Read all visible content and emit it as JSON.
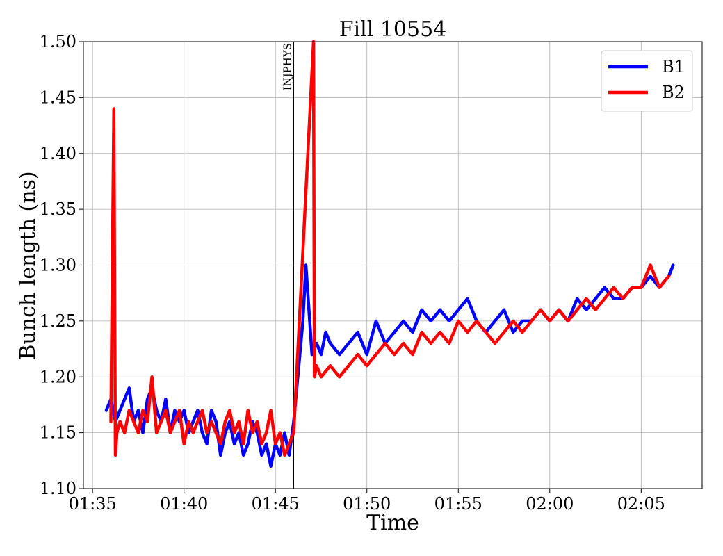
{
  "chart_data": {
    "type": "line",
    "title": "Fill 10554",
    "xlabel": "Time",
    "ylabel": "Bunch length (ns)",
    "x_unit": "time (hh:mm)",
    "xlim": [
      "01:34:30",
      "02:08:20"
    ],
    "ylim": [
      1.1,
      1.5
    ],
    "x_ticks": [
      "01:35",
      "01:40",
      "01:45",
      "01:50",
      "01:55",
      "02:00",
      "02:05"
    ],
    "y_ticks": [
      "1.10",
      "1.15",
      "1.20",
      "1.25",
      "1.30",
      "1.35",
      "1.40",
      "1.45",
      "1.50"
    ],
    "grid": true,
    "legend_position": "top-right",
    "colors": {
      "B1": "#0000ff",
      "B2": "#ff0000",
      "annotation": "#000000"
    },
    "annotations": [
      {
        "text": "INJPHYS",
        "x": "01:46:00",
        "style": "vertical-line"
      }
    ],
    "series": [
      {
        "name": "B1",
        "color": "#0000ff",
        "x": [
          "01:35:45",
          "01:36:00",
          "01:36:15",
          "01:36:30",
          "01:36:45",
          "01:37:00",
          "01:37:15",
          "01:37:30",
          "01:37:45",
          "01:38:00",
          "01:38:15",
          "01:38:30",
          "01:38:45",
          "01:39:00",
          "01:39:15",
          "01:39:30",
          "01:39:45",
          "01:40:00",
          "01:40:15",
          "01:40:30",
          "01:40:45",
          "01:41:00",
          "01:41:15",
          "01:41:30",
          "01:41:45",
          "01:42:00",
          "01:42:15",
          "01:42:30",
          "01:42:45",
          "01:43:00",
          "01:43:15",
          "01:43:30",
          "01:43:45",
          "01:44:00",
          "01:44:15",
          "01:44:30",
          "01:44:45",
          "01:45:00",
          "01:45:15",
          "01:45:30",
          "01:45:45",
          "01:46:00",
          "01:46:30",
          "01:46:40",
          "01:47:00",
          "01:47:15",
          "01:47:30",
          "01:47:45",
          "01:48:00",
          "01:48:30",
          "01:49:00",
          "01:49:30",
          "01:50:00",
          "01:50:30",
          "01:51:00",
          "01:51:30",
          "01:52:00",
          "01:52:30",
          "01:53:00",
          "01:53:30",
          "01:54:00",
          "01:54:30",
          "01:55:00",
          "01:55:30",
          "01:56:00",
          "01:56:30",
          "01:57:00",
          "01:57:30",
          "01:58:00",
          "01:58:30",
          "01:59:00",
          "01:59:30",
          "02:00:00",
          "02:00:30",
          "02:01:00",
          "02:01:30",
          "02:02:00",
          "02:02:30",
          "02:03:00",
          "02:03:30",
          "02:04:00",
          "02:04:30",
          "02:05:00",
          "02:05:30",
          "02:06:00",
          "02:06:30",
          "02:06:45"
        ],
        "y": [
          1.17,
          1.18,
          1.16,
          1.17,
          1.18,
          1.19,
          1.16,
          1.17,
          1.15,
          1.18,
          1.19,
          1.17,
          1.16,
          1.18,
          1.15,
          1.17,
          1.16,
          1.17,
          1.15,
          1.16,
          1.17,
          1.15,
          1.14,
          1.17,
          1.16,
          1.13,
          1.15,
          1.16,
          1.14,
          1.15,
          1.13,
          1.14,
          1.16,
          1.15,
          1.13,
          1.14,
          1.12,
          1.14,
          1.13,
          1.15,
          1.13,
          1.16,
          1.25,
          1.3,
          1.22,
          1.23,
          1.22,
          1.24,
          1.23,
          1.22,
          1.23,
          1.24,
          1.22,
          1.25,
          1.23,
          1.24,
          1.25,
          1.24,
          1.26,
          1.25,
          1.26,
          1.25,
          1.26,
          1.27,
          1.25,
          1.24,
          1.25,
          1.26,
          1.24,
          1.25,
          1.25,
          1.26,
          1.25,
          1.26,
          1.25,
          1.27,
          1.26,
          1.27,
          1.28,
          1.27,
          1.27,
          1.28,
          1.28,
          1.29,
          1.28,
          1.29,
          1.3
        ]
      },
      {
        "name": "B2",
        "color": "#ff0000",
        "x": [
          "01:36:00",
          "01:36:10",
          "01:36:15",
          "01:36:20",
          "01:36:30",
          "01:36:45",
          "01:37:00",
          "01:37:15",
          "01:37:30",
          "01:37:45",
          "01:38:00",
          "01:38:15",
          "01:38:30",
          "01:38:45",
          "01:39:00",
          "01:39:15",
          "01:39:30",
          "01:39:45",
          "01:40:00",
          "01:40:15",
          "01:40:30",
          "01:40:45",
          "01:41:00",
          "01:41:15",
          "01:41:30",
          "01:41:45",
          "01:42:00",
          "01:42:15",
          "01:42:30",
          "01:42:45",
          "01:43:00",
          "01:43:15",
          "01:43:30",
          "01:43:45",
          "01:44:00",
          "01:44:15",
          "01:44:30",
          "01:44:45",
          "01:45:00",
          "01:45:15",
          "01:45:30",
          "01:45:45",
          "01:46:00",
          "01:47:05",
          "01:47:08",
          "01:47:15",
          "01:47:30",
          "01:48:00",
          "01:48:30",
          "01:49:00",
          "01:49:30",
          "01:50:00",
          "01:50:30",
          "01:51:00",
          "01:51:30",
          "01:52:00",
          "01:52:30",
          "01:53:00",
          "01:53:30",
          "01:54:00",
          "01:54:30",
          "01:55:00",
          "01:55:30",
          "01:56:00",
          "01:56:30",
          "01:57:00",
          "01:57:30",
          "01:58:00",
          "01:58:30",
          "01:59:00",
          "01:59:30",
          "02:00:00",
          "02:00:30",
          "02:01:00",
          "02:01:30",
          "02:02:00",
          "02:02:30",
          "02:03:00",
          "02:03:30",
          "02:04:00",
          "02:04:30",
          "02:05:00",
          "02:05:30",
          "02:06:00",
          "02:06:30"
        ],
        "y": [
          1.16,
          1.44,
          1.13,
          1.15,
          1.16,
          1.15,
          1.17,
          1.16,
          1.15,
          1.17,
          1.16,
          1.2,
          1.15,
          1.16,
          1.17,
          1.15,
          1.16,
          1.17,
          1.14,
          1.16,
          1.15,
          1.16,
          1.17,
          1.15,
          1.16,
          1.15,
          1.14,
          1.16,
          1.17,
          1.15,
          1.16,
          1.14,
          1.17,
          1.15,
          1.16,
          1.14,
          1.15,
          1.17,
          1.14,
          1.15,
          1.13,
          1.14,
          1.15,
          1.5,
          1.2,
          1.21,
          1.2,
          1.21,
          1.2,
          1.21,
          1.22,
          1.21,
          1.22,
          1.23,
          1.22,
          1.23,
          1.22,
          1.24,
          1.23,
          1.24,
          1.23,
          1.25,
          1.24,
          1.25,
          1.24,
          1.23,
          1.24,
          1.25,
          1.24,
          1.25,
          1.26,
          1.25,
          1.26,
          1.25,
          1.26,
          1.27,
          1.26,
          1.27,
          1.28,
          1.27,
          1.28,
          1.28,
          1.3,
          1.28,
          1.29
        ]
      }
    ]
  }
}
